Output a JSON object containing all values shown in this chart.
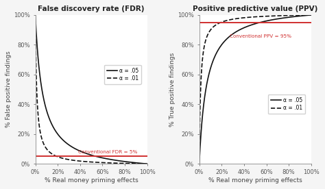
{
  "title_left": "False discovery rate (FDR)",
  "title_right": "Positive predictive value (PPV)",
  "xlabel": "% Real money priming effects",
  "ylabel_left": "% False positive findings",
  "ylabel_right": "% True positive findings",
  "alpha_values": [
    0.05,
    0.01
  ],
  "power": 0.8,
  "fdr_threshold_pct": 5,
  "ppv_threshold_pct": 95,
  "fdr_label": "Conventional FDR = 5%",
  "ppv_label": "Conventional PPV = 95%",
  "legend_labels": [
    "α = .05",
    "α = .01"
  ],
  "line_color": "#111111",
  "threshold_color": "#d03030",
  "background_color": "#f5f5f5",
  "plot_bg_color": "#ffffff",
  "title_fontsize": 7.5,
  "label_fontsize": 6.5,
  "tick_fontsize": 6,
  "legend_fontsize": 5.5,
  "linewidth": 1.2,
  "threshold_linewidth": 1.4
}
